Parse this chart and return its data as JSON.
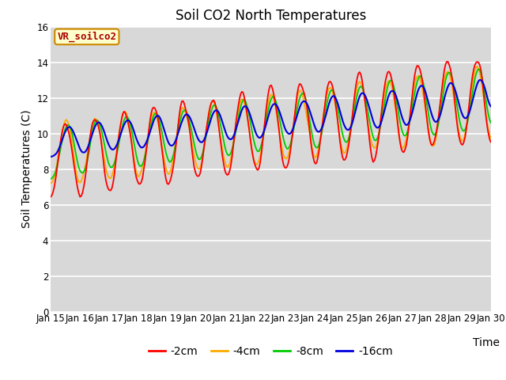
{
  "title": "Soil CO2 North Temperatures",
  "xlabel": "Time",
  "ylabel": "Soil Temperatures (C)",
  "label_box": "VR_soilco2",
  "ylim": [
    0,
    16
  ],
  "yticks": [
    0,
    2,
    4,
    6,
    8,
    10,
    12,
    14,
    16
  ],
  "xtick_labels": [
    "Jan 15",
    "Jan 16",
    "Jan 17",
    "Jan 18",
    "Jan 19",
    "Jan 20",
    "Jan 21",
    "Jan 22",
    "Jan 23",
    "Jan 24",
    "Jan 25",
    "Jan 26",
    "Jan 27",
    "Jan 28",
    "Jan 29",
    "Jan 30"
  ],
  "colors": {
    "-2cm": "#ff0000",
    "-4cm": "#ffaa00",
    "-8cm": "#00cc00",
    "-16cm": "#0000dd"
  },
  "bg_color": "#d8d8d8",
  "fig_bg": "#ffffff",
  "title_fontsize": 12,
  "axis_label_fontsize": 10,
  "tick_fontsize": 8.5,
  "legend_fontsize": 10,
  "n_days": 15,
  "pts_per_day": 24
}
